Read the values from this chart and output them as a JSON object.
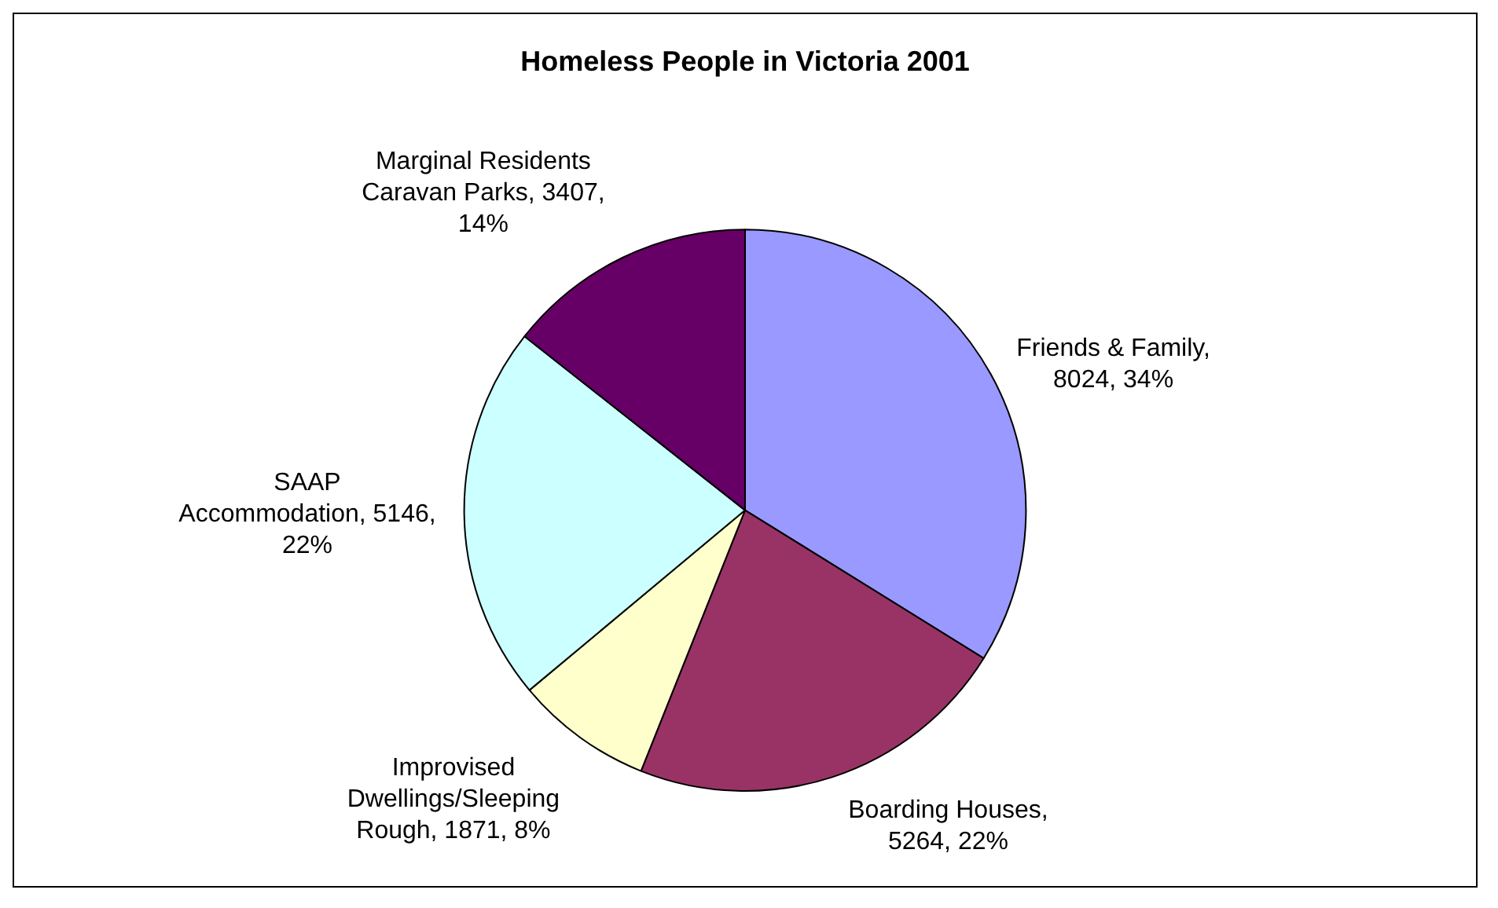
{
  "chart_data": {
    "type": "pie",
    "title": "Homeless People in Victoria 2001",
    "categories": [
      "Friends & Family",
      "Boarding Houses",
      "Improvised Dwellings/Sleeping Rough",
      "SAAP Accommodation",
      "Marginal Residents Caravan Parks"
    ],
    "values": [
      8024,
      5264,
      1871,
      5146,
      3407
    ],
    "colors": [
      "#9999ff",
      "#993366",
      "#ffffcc",
      "#ccffff",
      "#660066"
    ],
    "value_labels": [
      ", 8024, 34%",
      ", 5264, 22%",
      ", 1871, 8%",
      ", 5146, 22%",
      ", 3407, 14%"
    ],
    "legend": false
  }
}
